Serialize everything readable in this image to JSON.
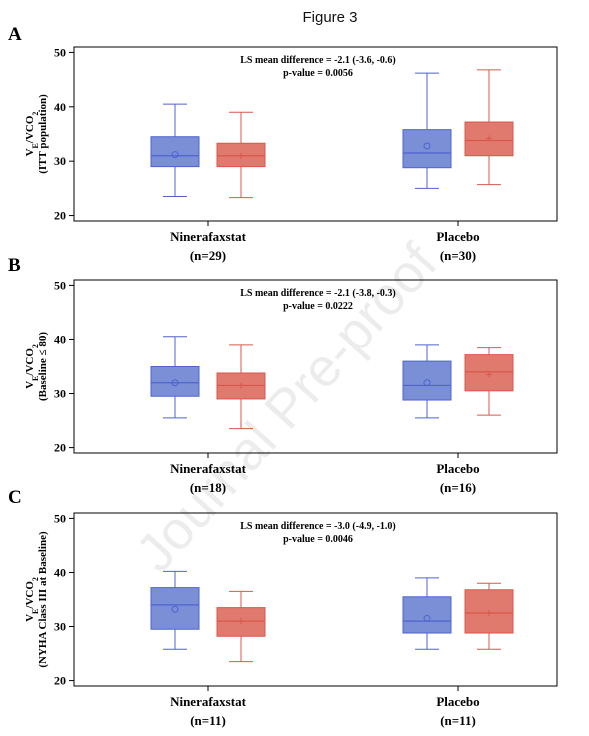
{
  "figure_title": "Figure 3",
  "watermark": "Journal Pre-proof",
  "colors": {
    "group_a_fill": "#7b8fd6",
    "group_a_stroke": "#4f62cf",
    "group_b_fill": "#e07a6e",
    "group_b_stroke": "#d9574a",
    "axis": "#000000"
  },
  "chart_data": [
    {
      "type": "box",
      "panel": "A",
      "ylabel": "VE/VCO2 (ITT population)",
      "ylabel_parts": {
        "main": "V",
        "sub1": "E",
        "mid": "/VCO",
        "sub2": "2",
        "line2": "(ITT population)"
      },
      "ylim": [
        19,
        51
      ],
      "yticks": [
        "20",
        "30",
        "40",
        "50"
      ],
      "categories": [
        {
          "name": "Ninerafaxstat",
          "n": "(n=29)"
        },
        {
          "name": "Placebo",
          "n": "(n=30)"
        }
      ],
      "annotation": [
        "LS mean difference = -2.1 (-3.6, -0.6)",
        "p-value = 0.0056"
      ],
      "boxes": [
        {
          "category": 0,
          "group": "a",
          "min": 23.5,
          "q1": 29.0,
          "median": 31.0,
          "q3": 34.5,
          "max": 40.5,
          "mean": 31.2
        },
        {
          "category": 0,
          "group": "b",
          "min": 23.3,
          "q1": 29.0,
          "median": 31.0,
          "q3": 33.3,
          "max": 39.0,
          "mean": 31.0
        },
        {
          "category": 1,
          "group": "a",
          "min": 25.0,
          "q1": 28.8,
          "median": 31.5,
          "q3": 35.8,
          "max": 46.2,
          "mean": 32.8
        },
        {
          "category": 1,
          "group": "b",
          "min": 25.7,
          "q1": 31.0,
          "median": 33.8,
          "q3": 37.2,
          "max": 46.8,
          "mean": 34.2
        }
      ]
    },
    {
      "type": "box",
      "panel": "B",
      "ylabel": "VE/VCO2 (Baseline ≤ 80)",
      "ylabel_parts": {
        "main": "V",
        "sub1": "E",
        "mid": "/VCO",
        "sub2": "2",
        "line2": "(Baseline ≤ 80)"
      },
      "ylim": [
        19,
        51
      ],
      "yticks": [
        "20",
        "30",
        "40",
        "50"
      ],
      "categories": [
        {
          "name": "Ninerafaxstat",
          "n": "(n=18)"
        },
        {
          "name": "Placebo",
          "n": "(n=16)"
        }
      ],
      "annotation": [
        "LS mean difference = -2.1 (-3.8, -0.3)",
        "p-value = 0.0222"
      ],
      "boxes": [
        {
          "category": 0,
          "group": "a",
          "min": 25.5,
          "q1": 29.5,
          "median": 32.0,
          "q3": 35.0,
          "max": 40.5,
          "mean": 32.0
        },
        {
          "category": 0,
          "group": "b",
          "min": 23.5,
          "q1": 29.0,
          "median": 31.5,
          "q3": 33.8,
          "max": 39.0,
          "mean": 31.5
        },
        {
          "category": 1,
          "group": "a",
          "min": 25.5,
          "q1": 28.8,
          "median": 31.5,
          "q3": 36.0,
          "max": 39.0,
          "mean": 32.0
        },
        {
          "category": 1,
          "group": "b",
          "min": 26.0,
          "q1": 30.5,
          "median": 34.0,
          "q3": 37.2,
          "max": 38.5,
          "mean": 33.5
        }
      ]
    },
    {
      "type": "box",
      "panel": "C",
      "ylabel": "VE/VCO2 (NYHA Class III at Baseline)",
      "ylabel_parts": {
        "main": "V",
        "sub1": "E",
        "mid": "/VCO",
        "sub2": "2",
        "line2": "(NYHA Class III at Baseline)"
      },
      "ylim": [
        19,
        51
      ],
      "yticks": [
        "20",
        "30",
        "40",
        "50"
      ],
      "categories": [
        {
          "name": "Ninerafaxstat",
          "n": "(n=11)"
        },
        {
          "name": "Placebo",
          "n": "(n=11)"
        }
      ],
      "annotation": [
        "LS mean difference = -3.0 (-4.9, -1.0)",
        "p-value = 0.0046"
      ],
      "boxes": [
        {
          "category": 0,
          "group": "a",
          "min": 25.8,
          "q1": 29.5,
          "median": 34.0,
          "q3": 37.2,
          "max": 40.2,
          "mean": 33.2
        },
        {
          "category": 0,
          "group": "b",
          "min": 23.5,
          "q1": 28.2,
          "median": 31.0,
          "q3": 33.5,
          "max": 36.5,
          "mean": 31.0
        },
        {
          "category": 1,
          "group": "a",
          "min": 25.8,
          "q1": 28.8,
          "median": 31.0,
          "q3": 35.5,
          "max": 39.0,
          "mean": 31.5
        },
        {
          "category": 1,
          "group": "b",
          "min": 25.8,
          "q1": 28.8,
          "median": 32.5,
          "q3": 36.8,
          "max": 38.0,
          "mean": 32.5
        }
      ]
    }
  ]
}
